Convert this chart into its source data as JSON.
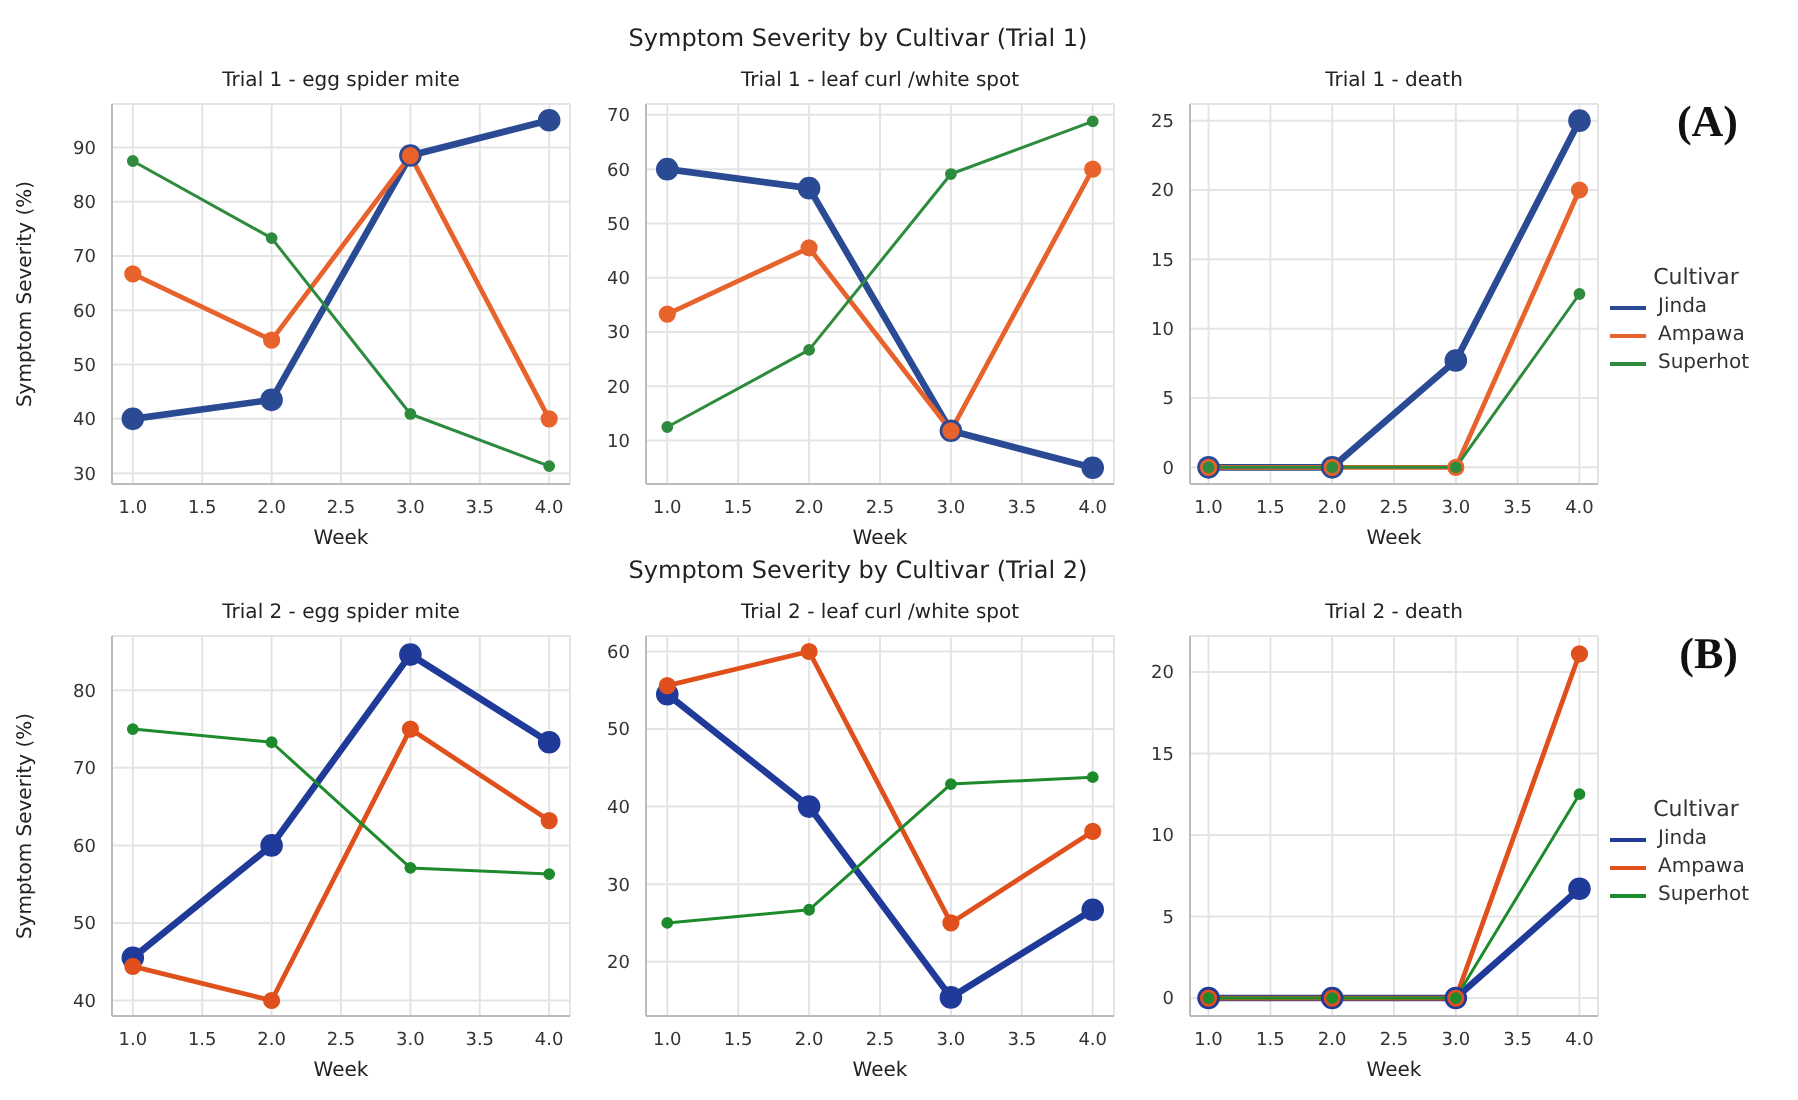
{
  "chart_data": [
    {
      "type": "line",
      "title": "Trial 1 - egg spider mite",
      "xlabel": "Week",
      "ylabel": "Symptom Severity (%)",
      "x": [
        1,
        2,
        3,
        4
      ],
      "xlim": [
        0.85,
        4.15
      ],
      "xticks": [
        {
          "value": 1,
          "label": "1.0"
        },
        {
          "value": 1.5,
          "label": "1.5"
        },
        {
          "value": 2,
          "label": "2.0"
        },
        {
          "value": 2.5,
          "label": "2.5"
        },
        {
          "value": 3,
          "label": "3.0"
        },
        {
          "value": 3.5,
          "label": "3.5"
        },
        {
          "value": 4,
          "label": "4.0"
        }
      ],
      "ylim": [
        28,
        98
      ],
      "yticks": [
        30,
        40,
        50,
        60,
        70,
        80,
        90
      ],
      "grid": true,
      "marker": "circle",
      "series": [
        {
          "color": "#2b4a94",
          "values": [
            40,
            43.5,
            88.5,
            95
          ]
        },
        {
          "color": "#e8622c",
          "values": [
            66.7,
            54.5,
            88.5,
            40
          ]
        },
        {
          "color": "#2e8b3e",
          "values": [
            87.5,
            73.3,
            40.9,
            31.3
          ]
        }
      ]
    },
    {
      "type": "line",
      "title": "Trial 1 - leaf curl /white spot",
      "xlabel": "Week",
      "annotations": [
        "Symptom Severity by Cultivar (Trial 1)"
      ],
      "x": [
        1,
        2,
        3,
        4
      ],
      "xlim": [
        0.85,
        4.15
      ],
      "xticks": [
        {
          "value": 1,
          "label": "1.0"
        },
        {
          "value": 1.5,
          "label": "1.5"
        },
        {
          "value": 2,
          "label": "2.0"
        },
        {
          "value": 2.5,
          "label": "2.5"
        },
        {
          "value": 3,
          "label": "3.0"
        },
        {
          "value": 3.5,
          "label": "3.5"
        },
        {
          "value": 4,
          "label": "4.0"
        }
      ],
      "ylim": [
        2,
        72
      ],
      "yticks": [
        10,
        20,
        30,
        40,
        50,
        60,
        70
      ],
      "grid": true,
      "marker": "circle",
      "series": [
        {
          "color": "#2b4a94",
          "values": [
            60,
            56.5,
            11.8,
            5
          ]
        },
        {
          "color": "#e8622c",
          "values": [
            33.3,
            45.5,
            11.8,
            60
          ]
        },
        {
          "color": "#2e8b3e",
          "values": [
            12.5,
            26.7,
            59.1,
            68.8
          ]
        }
      ]
    },
    {
      "type": "line",
      "title": "Trial 1 - death",
      "xlabel": "Week",
      "annotations": [
        "(A)"
      ],
      "legend": "right",
      "legend_title": "Cultivar",
      "x": [
        1,
        2,
        3,
        4
      ],
      "xlim": [
        0.85,
        4.15
      ],
      "xticks": [
        {
          "value": 1,
          "label": "1.0"
        },
        {
          "value": 1.5,
          "label": "1.5"
        },
        {
          "value": 2,
          "label": "2.0"
        },
        {
          "value": 2.5,
          "label": "2.5"
        },
        {
          "value": 3,
          "label": "3.0"
        },
        {
          "value": 3.5,
          "label": "3.5"
        },
        {
          "value": 4,
          "label": "4.0"
        }
      ],
      "ylim": [
        -1.2,
        26.2
      ],
      "yticks": [
        0,
        5,
        10,
        15,
        20,
        25
      ],
      "grid": true,
      "marker": "circle",
      "series": [
        {
          "name": "Jinda",
          "color": "#2b4a94",
          "values": [
            0,
            0,
            7.7,
            25
          ]
        },
        {
          "name": "Ampawa",
          "color": "#e8622c",
          "values": [
            0,
            0,
            0,
            20
          ]
        },
        {
          "name": "Superhot",
          "color": "#2e8b3e",
          "values": [
            0,
            0,
            0,
            12.5
          ]
        }
      ]
    },
    {
      "type": "line",
      "title": "Trial 2 - egg spider mite",
      "xlabel": "Week",
      "ylabel": "Symptom Severity (%)",
      "x": [
        1,
        2,
        3,
        4
      ],
      "xlim": [
        0.85,
        4.15
      ],
      "xticks": [
        {
          "value": 1,
          "label": "1.0"
        },
        {
          "value": 1.5,
          "label": "1.5"
        },
        {
          "value": 2,
          "label": "2.0"
        },
        {
          "value": 2.5,
          "label": "2.5"
        },
        {
          "value": 3,
          "label": "3.0"
        },
        {
          "value": 3.5,
          "label": "3.5"
        },
        {
          "value": 4,
          "label": "4.0"
        }
      ],
      "ylim": [
        38,
        87
      ],
      "yticks": [
        40,
        50,
        60,
        70,
        80
      ],
      "grid": true,
      "marker": "circle",
      "series": [
        {
          "color": "#1f3a99",
          "values": [
            45.5,
            60,
            84.6,
            73.3
          ]
        },
        {
          "color": "#e0501c",
          "values": [
            44.4,
            40,
            75,
            63.2
          ]
        },
        {
          "color": "#1d8a2c",
          "values": [
            75,
            73.3,
            57.1,
            56.3
          ]
        }
      ]
    },
    {
      "type": "line",
      "title": "Trial 2 - leaf curl /white spot",
      "xlabel": "Week",
      "annotations": [
        "Symptom Severity by Cultivar (Trial 2)"
      ],
      "x": [
        1,
        2,
        3,
        4
      ],
      "xlim": [
        0.85,
        4.15
      ],
      "xticks": [
        {
          "value": 1,
          "label": "1.0"
        },
        {
          "value": 1.5,
          "label": "1.5"
        },
        {
          "value": 2,
          "label": "2.0"
        },
        {
          "value": 2.5,
          "label": "2.5"
        },
        {
          "value": 3,
          "label": "3.0"
        },
        {
          "value": 3.5,
          "label": "3.5"
        },
        {
          "value": 4,
          "label": "4.0"
        }
      ],
      "ylim": [
        13,
        62
      ],
      "yticks": [
        20,
        30,
        40,
        50,
        60
      ],
      "grid": true,
      "marker": "circle",
      "series": [
        {
          "color": "#1f3a99",
          "values": [
            54.5,
            40,
            15.4,
            26.7
          ]
        },
        {
          "color": "#e0501c",
          "values": [
            55.6,
            60,
            25,
            36.8
          ]
        },
        {
          "color": "#1d8a2c",
          "values": [
            25,
            26.7,
            42.9,
            43.8
          ]
        }
      ]
    },
    {
      "type": "line",
      "title": "Trial 2 - death",
      "xlabel": "Week",
      "annotations": [
        "(B)"
      ],
      "legend": "right",
      "legend_title": "Cultivar",
      "x": [
        1,
        2,
        3,
        4
      ],
      "xlim": [
        0.85,
        4.15
      ],
      "xticks": [
        {
          "value": 1,
          "label": "1.0"
        },
        {
          "value": 1.5,
          "label": "1.5"
        },
        {
          "value": 2,
          "label": "2.0"
        },
        {
          "value": 2.5,
          "label": "2.5"
        },
        {
          "value": 3,
          "label": "3.0"
        },
        {
          "value": 3.5,
          "label": "3.5"
        },
        {
          "value": 4,
          "label": "4.0"
        }
      ],
      "ylim": [
        -1.1,
        22.2
      ],
      "yticks": [
        0,
        5,
        10,
        15,
        20
      ],
      "grid": true,
      "marker": "circle",
      "series": [
        {
          "name": "Jinda",
          "color": "#1f3a99",
          "values": [
            0,
            0,
            0,
            6.7
          ]
        },
        {
          "name": "Ampawa",
          "color": "#e0501c",
          "values": [
            0,
            0,
            0,
            21.1
          ]
        },
        {
          "name": "Superhot",
          "color": "#1d8a2c",
          "values": [
            0,
            0,
            0,
            12.5
          ]
        }
      ]
    }
  ]
}
